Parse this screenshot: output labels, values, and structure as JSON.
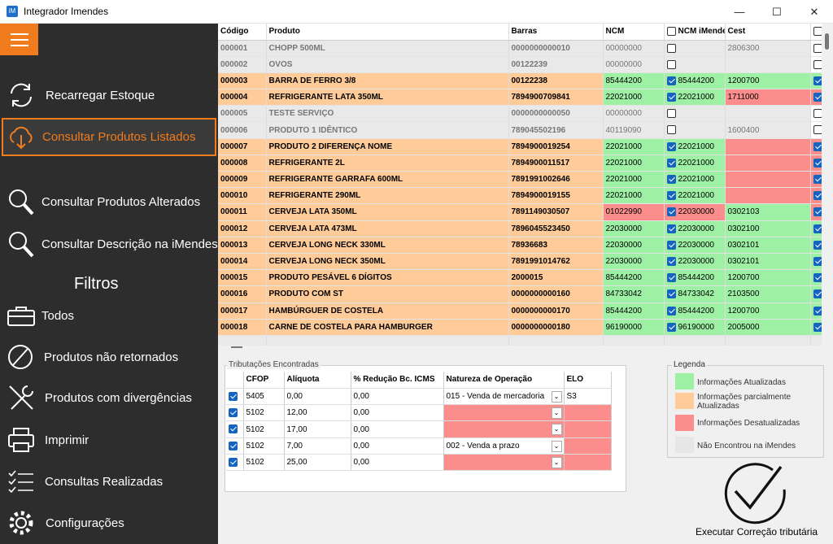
{
  "window": {
    "title": "Integrador Imendes",
    "icon": "iM",
    "min": "—",
    "max": "☐",
    "close": "✕"
  },
  "sidebar": {
    "items": [
      {
        "label": "Recarregar Estoque",
        "icon": "reload-icon"
      },
      {
        "label": "Consultar Produtos Listados",
        "icon": "cloud-download-icon"
      },
      {
        "label": "Consultar Produtos Alterados",
        "icon": "magnifier-icon"
      },
      {
        "label": "Consultar Descrição na iMendes",
        "icon": "magnifier-icon"
      }
    ],
    "filters_title": "Filtros",
    "filters": [
      {
        "label": "Todos",
        "icon": "toolbox-icon"
      },
      {
        "label": "Produtos não retornados",
        "icon": "forbidden-icon"
      },
      {
        "label": "Produtos com divergências",
        "icon": "tools-icon"
      },
      {
        "label": "Imprimir",
        "icon": "printer-icon"
      },
      {
        "label": "Consultas Realizadas",
        "icon": "checklist-icon"
      },
      {
        "label": "Configurações",
        "icon": "gear-icon"
      }
    ]
  },
  "grid": {
    "headers": [
      "Código",
      "Produto",
      "Barras",
      "NCM",
      "NCM iMendes",
      "Cest",
      ""
    ],
    "rows": [
      {
        "codigo": "000001",
        "produto": "CHOPP 500ML",
        "barras": "0000000000010",
        "ncm": "00000000",
        "ncmi": "",
        "ncmi_checked": false,
        "cest": "2806300",
        "style": "g",
        "ncm_c": "",
        "ncmi_c": "",
        "cest_c": "",
        "last": false
      },
      {
        "codigo": "000002",
        "produto": "OVOS",
        "barras": "00122239",
        "ncm": "00000000",
        "ncmi": "",
        "ncmi_checked": false,
        "cest": "",
        "style": "g",
        "ncm_c": "",
        "ncmi_c": "",
        "cest_c": "",
        "last": false
      },
      {
        "codigo": "000003",
        "produto": "BARRA DE FERRO 3/8",
        "barras": "00122238",
        "ncm": "85444200",
        "ncmi": "85444200",
        "ncmi_checked": true,
        "cest": "1200700",
        "style": "o",
        "ncm_c": "green",
        "ncmi_c": "green",
        "cest_c": "green",
        "last": true
      },
      {
        "codigo": "000004",
        "produto": "REFRIGERANTE LATA 350ML",
        "barras": "7894900709841",
        "ncm": "22021000",
        "ncmi": "22021000",
        "ncmi_checked": true,
        "cest": "1711000",
        "style": "o",
        "ncm_c": "green",
        "ncmi_c": "green",
        "cest_c": "red",
        "last": true
      },
      {
        "codigo": "000005",
        "produto": "TESTE SERVIÇO",
        "barras": "0000000000050",
        "ncm": "00000000",
        "ncmi": "",
        "ncmi_checked": false,
        "cest": "",
        "style": "g",
        "ncm_c": "",
        "ncmi_c": "",
        "cest_c": "",
        "last": false
      },
      {
        "codigo": "000006",
        "produto": "PRODUTO 1 IDÊNTICO",
        "barras": "789045502196",
        "ncm": "40119090",
        "ncmi": "",
        "ncmi_checked": false,
        "cest": "1600400",
        "style": "g",
        "ncm_c": "",
        "ncmi_c": "",
        "cest_c": "",
        "last": false
      },
      {
        "codigo": "000007",
        "produto": "PRODUTO 2 DIFERENÇA NOME",
        "barras": "7894900019254",
        "ncm": "22021000",
        "ncmi": "22021000",
        "ncmi_checked": true,
        "cest": "",
        "style": "o",
        "ncm_c": "green",
        "ncmi_c": "green",
        "cest_c": "red",
        "last": true
      },
      {
        "codigo": "000008",
        "produto": "REFRIGERANTE  2L",
        "barras": "7894900011517",
        "ncm": "22021000",
        "ncmi": "22021000",
        "ncmi_checked": true,
        "cest": "",
        "style": "o",
        "ncm_c": "green",
        "ncmi_c": "green",
        "cest_c": "red",
        "last": true
      },
      {
        "codigo": "000009",
        "produto": "REFRIGERANTE GARRAFA 600ML",
        "barras": "7891991002646",
        "ncm": "22021000",
        "ncmi": "22021000",
        "ncmi_checked": true,
        "cest": "",
        "style": "o",
        "ncm_c": "green",
        "ncmi_c": "green",
        "cest_c": "red",
        "last": true
      },
      {
        "codigo": "000010",
        "produto": "REFRIGERANTE 290ML",
        "barras": "7894900019155",
        "ncm": "22021000",
        "ncmi": "22021000",
        "ncmi_checked": true,
        "cest": "",
        "style": "o",
        "ncm_c": "green",
        "ncmi_c": "green",
        "cest_c": "red",
        "last": true
      },
      {
        "codigo": "000011",
        "produto": "CERVEJA LATA 350ML",
        "barras": "7891149030507",
        "ncm": "01022990",
        "ncmi": "22030000",
        "ncmi_checked": true,
        "cest": "0302103",
        "style": "o",
        "ncm_c": "red",
        "ncmi_c": "red",
        "cest_c": "green",
        "last": true
      },
      {
        "codigo": "000012",
        "produto": "CERVEJA LATA 473ML",
        "barras": "7896045523450",
        "ncm": "22030000",
        "ncmi": "22030000",
        "ncmi_checked": true,
        "cest": "0302100",
        "style": "o",
        "ncm_c": "green",
        "ncmi_c": "green",
        "cest_c": "green",
        "last": true
      },
      {
        "codigo": "000013",
        "produto": "CERVEJA LONG NECK 330ML",
        "barras": "78936683",
        "ncm": "22030000",
        "ncmi": "22030000",
        "ncmi_checked": true,
        "cest": "0302101",
        "style": "o",
        "ncm_c": "green",
        "ncmi_c": "green",
        "cest_c": "green",
        "last": true
      },
      {
        "codigo": "000014",
        "produto": "CERVEJA LONG NECK 350ML",
        "barras": "7891991014762",
        "ncm": "22030000",
        "ncmi": "22030000",
        "ncmi_checked": true,
        "cest": "0302101",
        "style": "o",
        "ncm_c": "green",
        "ncmi_c": "green",
        "cest_c": "green",
        "last": true
      },
      {
        "codigo": "000015",
        "produto": "PRODUTO PESÁVEL 6 DÍGITOS",
        "barras": "2000015",
        "ncm": "85444200",
        "ncmi": "85444200",
        "ncmi_checked": true,
        "cest": "1200700",
        "style": "o",
        "ncm_c": "green",
        "ncmi_c": "green",
        "cest_c": "green",
        "last": true
      },
      {
        "codigo": "000016",
        "produto": "PRODUTO COM ST",
        "barras": "0000000000160",
        "ncm": "84733042",
        "ncmi": "84733042",
        "ncmi_checked": true,
        "cest": "2103500",
        "style": "o",
        "ncm_c": "green",
        "ncmi_c": "green",
        "cest_c": "green",
        "last": true
      },
      {
        "codigo": "000017",
        "produto": "HAMBÚRGUER DE COSTELA",
        "barras": "0000000000170",
        "ncm": "85444200",
        "ncmi": "85444200",
        "ncmi_checked": true,
        "cest": "1200700",
        "style": "o",
        "ncm_c": "green",
        "ncmi_c": "green",
        "cest_c": "green",
        "last": true
      },
      {
        "codigo": "000018",
        "produto": "CARNE DE COSTELA PARA HAMBURGER",
        "barras": "0000000000180",
        "ncm": "96190000",
        "ncmi": "96190000",
        "ncmi_checked": true,
        "cest": "2005000",
        "style": "o",
        "ncm_c": "green",
        "ncmi_c": "green",
        "cest_c": "green",
        "last": true
      }
    ]
  },
  "trib": {
    "title": "Tributações Encontradas",
    "headers": [
      "",
      "CFOP",
      "Alíquota",
      "% Redução Bc. ICMS",
      "Natureza de Operação",
      "ELO"
    ],
    "rows": [
      {
        "cfop": "5405",
        "aliq": "0,00",
        "red": "0,00",
        "nat": "015 - Venda de mercadoria",
        "elo": "S3",
        "nat_c": "white",
        "elo_c": "white"
      },
      {
        "cfop": "5102",
        "aliq": "12,00",
        "red": "0,00",
        "nat": "",
        "elo": "",
        "nat_c": "red",
        "elo_c": "red"
      },
      {
        "cfop": "5102",
        "aliq": "17,00",
        "red": "0,00",
        "nat": "",
        "elo": "",
        "nat_c": "red",
        "elo_c": "red"
      },
      {
        "cfop": "5102",
        "aliq": "7,00",
        "red": "0,00",
        "nat": "002 - Venda a prazo",
        "elo": "",
        "nat_c": "white",
        "elo_c": "red"
      },
      {
        "cfop": "5102",
        "aliq": "25,00",
        "red": "0,00",
        "nat": "",
        "elo": "",
        "nat_c": "red",
        "elo_c": "red"
      }
    ]
  },
  "legend": {
    "title": "Legenda",
    "items": [
      {
        "label": "Informações Atualizadas",
        "color": "#9ef0a5"
      },
      {
        "label": "Informações parcialmente Atualizadas",
        "color": "#ffcc99"
      },
      {
        "label": "Informações Desatualizadas",
        "color": "#fb8d8d"
      },
      {
        "label": "Não Encontrou na iMendes",
        "color": "#e6e6e6"
      }
    ]
  },
  "exec": {
    "label": "Executar Correção tributária",
    "icon": "checkmark-circle-icon"
  },
  "colors": {
    "accent": "#f07c1e",
    "sidebar": "#2d2d2d"
  }
}
